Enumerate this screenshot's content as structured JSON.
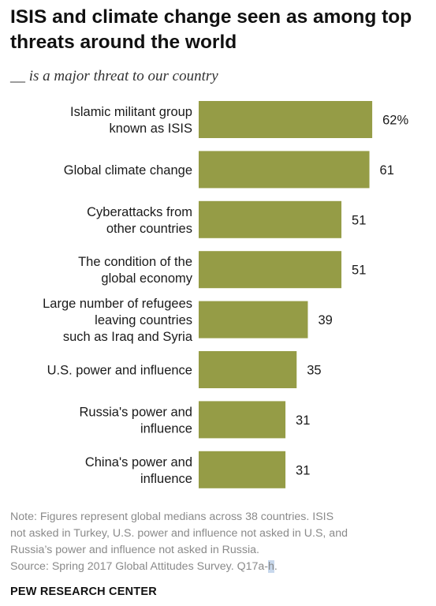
{
  "title": "ISIS and climate change seen as among top threats around the world",
  "subtitle": "__ is a major threat to our country",
  "note_lines": [
    "Note: Figures represent global medians across 38 countries. ISIS",
    "not asked in Turkey, U.S. power and influence not asked in U.S, and",
    "Russia’s power and influence not asked in Russia."
  ],
  "source": {
    "prefix": "Source: Spring 2017 Global Attitudes Survey. Q17a-",
    "highlighted": "h",
    "suffix": "."
  },
  "brand": "PEW RESEARCH CENTER",
  "colors": {
    "bar": "#959c46",
    "text": "#1a1a1a",
    "note": "#8a8a8a"
  },
  "chart_data": {
    "type": "bar",
    "orientation": "horizontal",
    "categories": [
      [
        "Islamic militant group",
        "known as ISIS"
      ],
      [
        "Global climate change"
      ],
      [
        "Cyberattacks from",
        "other countries"
      ],
      [
        "The condition of the",
        "global economy"
      ],
      [
        "Large number of refugees",
        "leaving countries",
        "such as Iraq and Syria"
      ],
      [
        "U.S. power and influence"
      ],
      [
        "Russia's power and",
        "influence"
      ],
      [
        "China's power and",
        "influence"
      ]
    ],
    "values": [
      62,
      61,
      51,
      51,
      39,
      35,
      31,
      31
    ],
    "value_labels": [
      "62%",
      "61",
      "51",
      "51",
      "39",
      "35",
      "31",
      "31"
    ],
    "unit": "%",
    "xlim": [
      0,
      100
    ],
    "grid": false,
    "legend": "none"
  }
}
